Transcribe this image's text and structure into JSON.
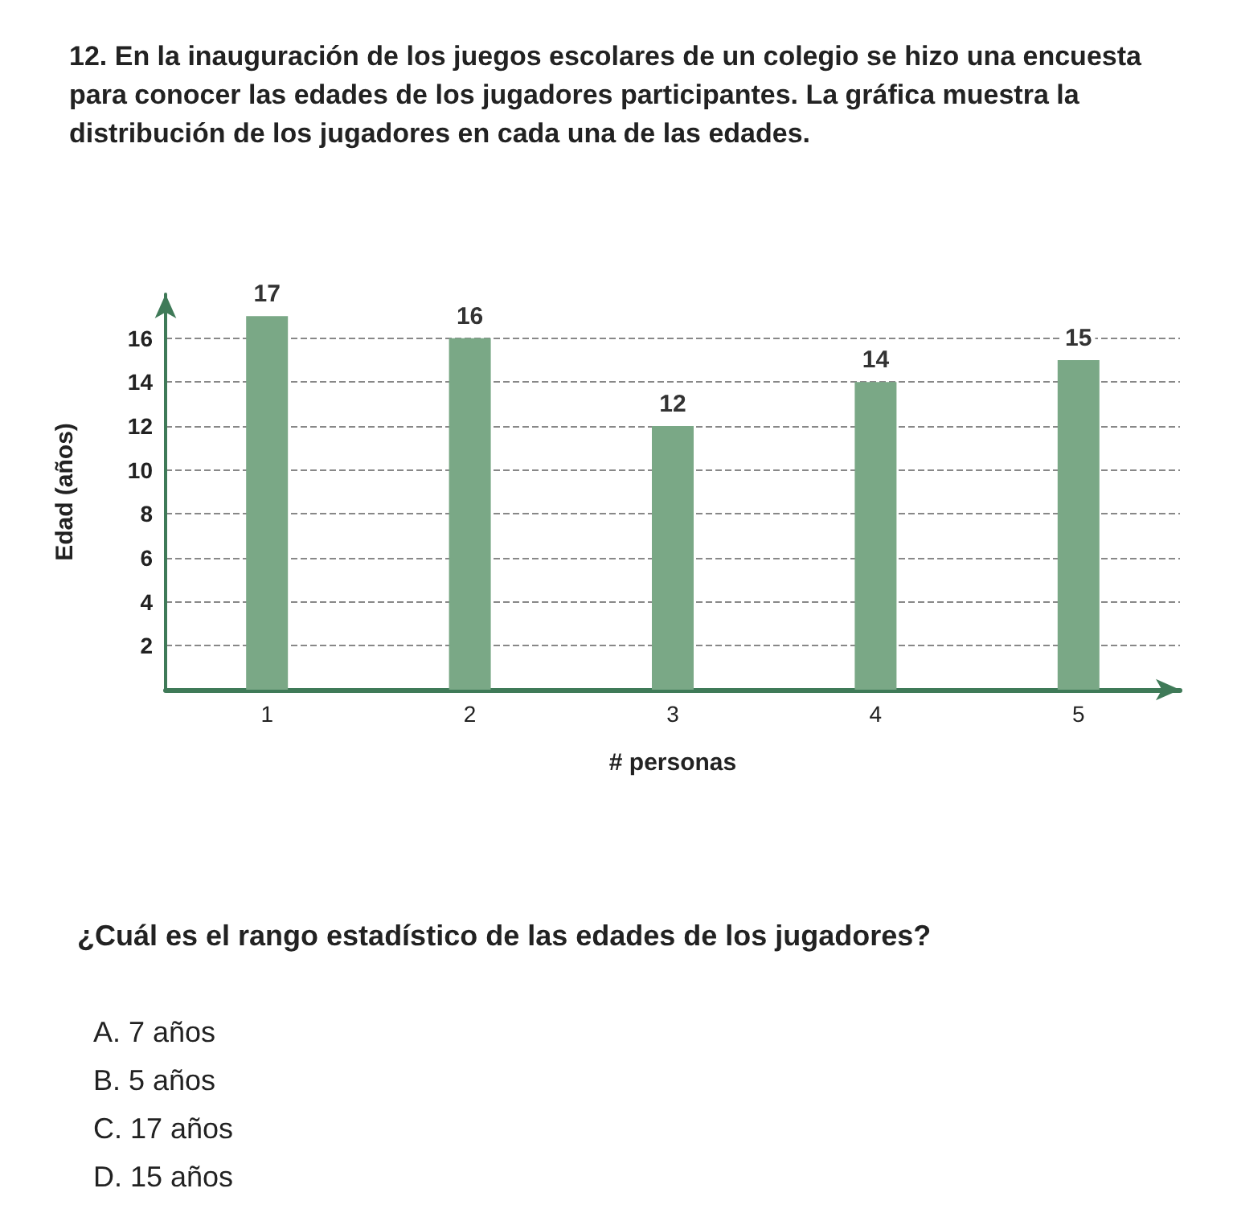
{
  "chart_data": {
    "type": "bar",
    "title": "12. En la inauguración de los juegos escolares de un colegio se hizo una encuesta para conocer las edades de los jugadores participantes. La gráfica muestra la distribución de los jugadores en cada una de las edades.",
    "xlabel": "# personas",
    "ylabel": "Edad (años)",
    "categories": [
      "1",
      "2",
      "3",
      "4",
      "5"
    ],
    "values": [
      17,
      16,
      12,
      14,
      15
    ],
    "color": "#7aa886",
    "ylim": [
      0,
      18
    ],
    "yticks": [
      2,
      4,
      6,
      8,
      10,
      12,
      14,
      16
    ],
    "grid": "y",
    "data_labels": true,
    "annotations": [
      "¿Cuál es el rango estadístico de las edades de los jugadores?",
      "A. 7 años",
      "B. 5 años",
      "C. 17 años",
      "D. 15 años"
    ]
  }
}
